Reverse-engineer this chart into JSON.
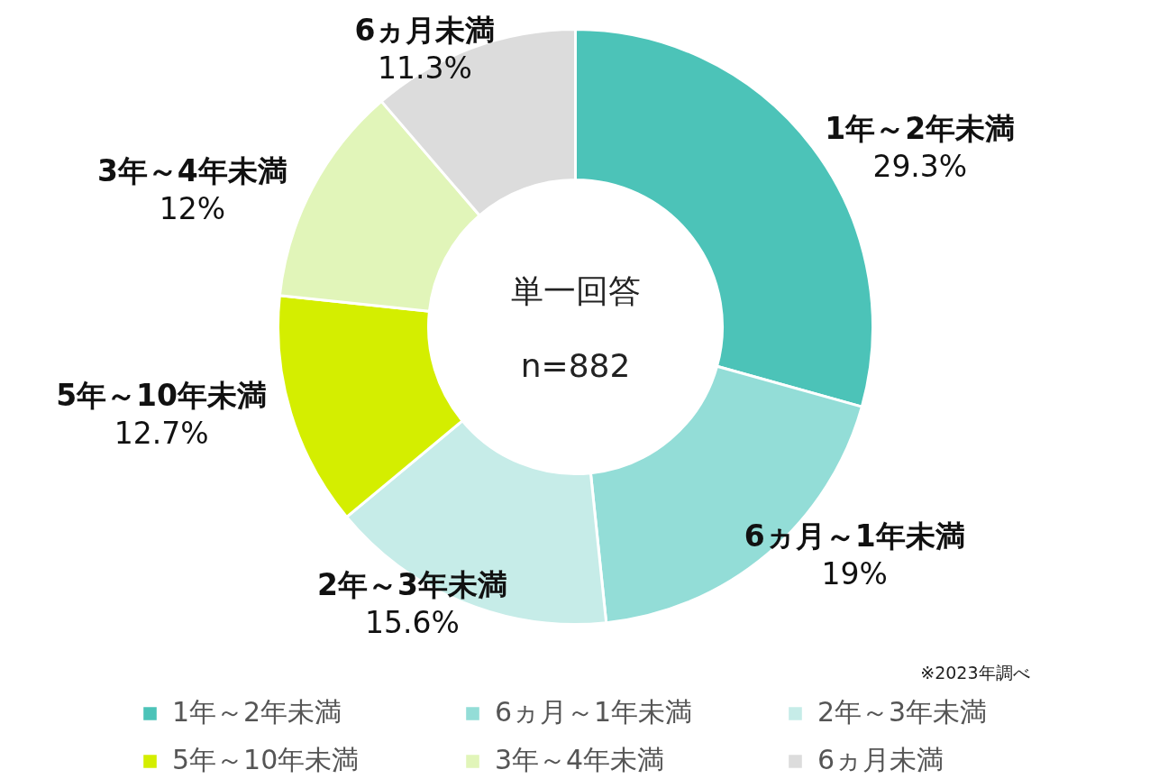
{
  "chart_data": {
    "type": "donut",
    "categories": [
      "1年～2年未満",
      "6ヵ月～1年未満",
      "2年～3年未満",
      "5年～10年未満",
      "3年～4年未満",
      "6ヵ月未満"
    ],
    "values": [
      29.3,
      19,
      15.6,
      12.7,
      12,
      11.3
    ],
    "colors": [
      "#4cc3b8",
      "#93ddd7",
      "#c6ece8",
      "#d4ee00",
      "#e1f5b9",
      "#dcdcdc"
    ],
    "value_labels": [
      "29.3%",
      "19%",
      "15.6%",
      "12.7%",
      "12%",
      "11.3%"
    ],
    "annotations": [
      "単一回答",
      "n=882",
      "※2023年調べ"
    ],
    "legend": "bottom"
  }
}
